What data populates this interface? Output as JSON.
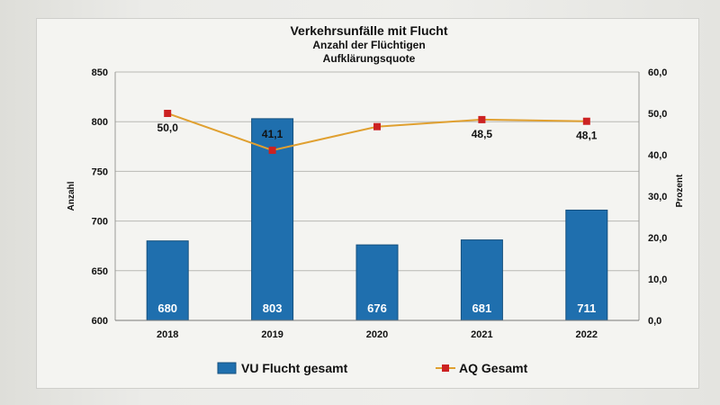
{
  "chart_data": {
    "type": "bar",
    "title": "Verkehrsunfälle mit Flucht",
    "subtitle_1": "Anzahl der Flüchtigen",
    "subtitle_2": "Aufklärungsquote",
    "categories": [
      "2018",
      "2019",
      "2020",
      "2021",
      "2022"
    ],
    "ylabel": "Anzahl",
    "ylabel_right": "Prozent",
    "ylim": [
      600,
      850
    ],
    "yticks": [
      "600",
      "650",
      "700",
      "750",
      "800",
      "850"
    ],
    "ylim_right": [
      0,
      60
    ],
    "yticks_right": [
      "0,0",
      "10,0",
      "20,0",
      "30,0",
      "40,0",
      "50,0",
      "60,0"
    ],
    "grid": "horizontal",
    "legend_position": "bottom",
    "series": [
      {
        "name": "VU Flucht gesamt",
        "type": "bar",
        "axis": "left",
        "color": "#1f6fae",
        "values": [
          680,
          803,
          676,
          681,
          711
        ],
        "labels": [
          "680",
          "803",
          "676",
          "681",
          "711"
        ]
      },
      {
        "name": "AQ Gesamt",
        "type": "line",
        "axis": "right",
        "color": "#e0a030",
        "marker_color": "#cc2222",
        "values": [
          50.0,
          41.1,
          46.8,
          48.5,
          48.1
        ],
        "labels": [
          "50,0",
          "41,1",
          "",
          "48,5",
          "48,1"
        ]
      }
    ]
  }
}
